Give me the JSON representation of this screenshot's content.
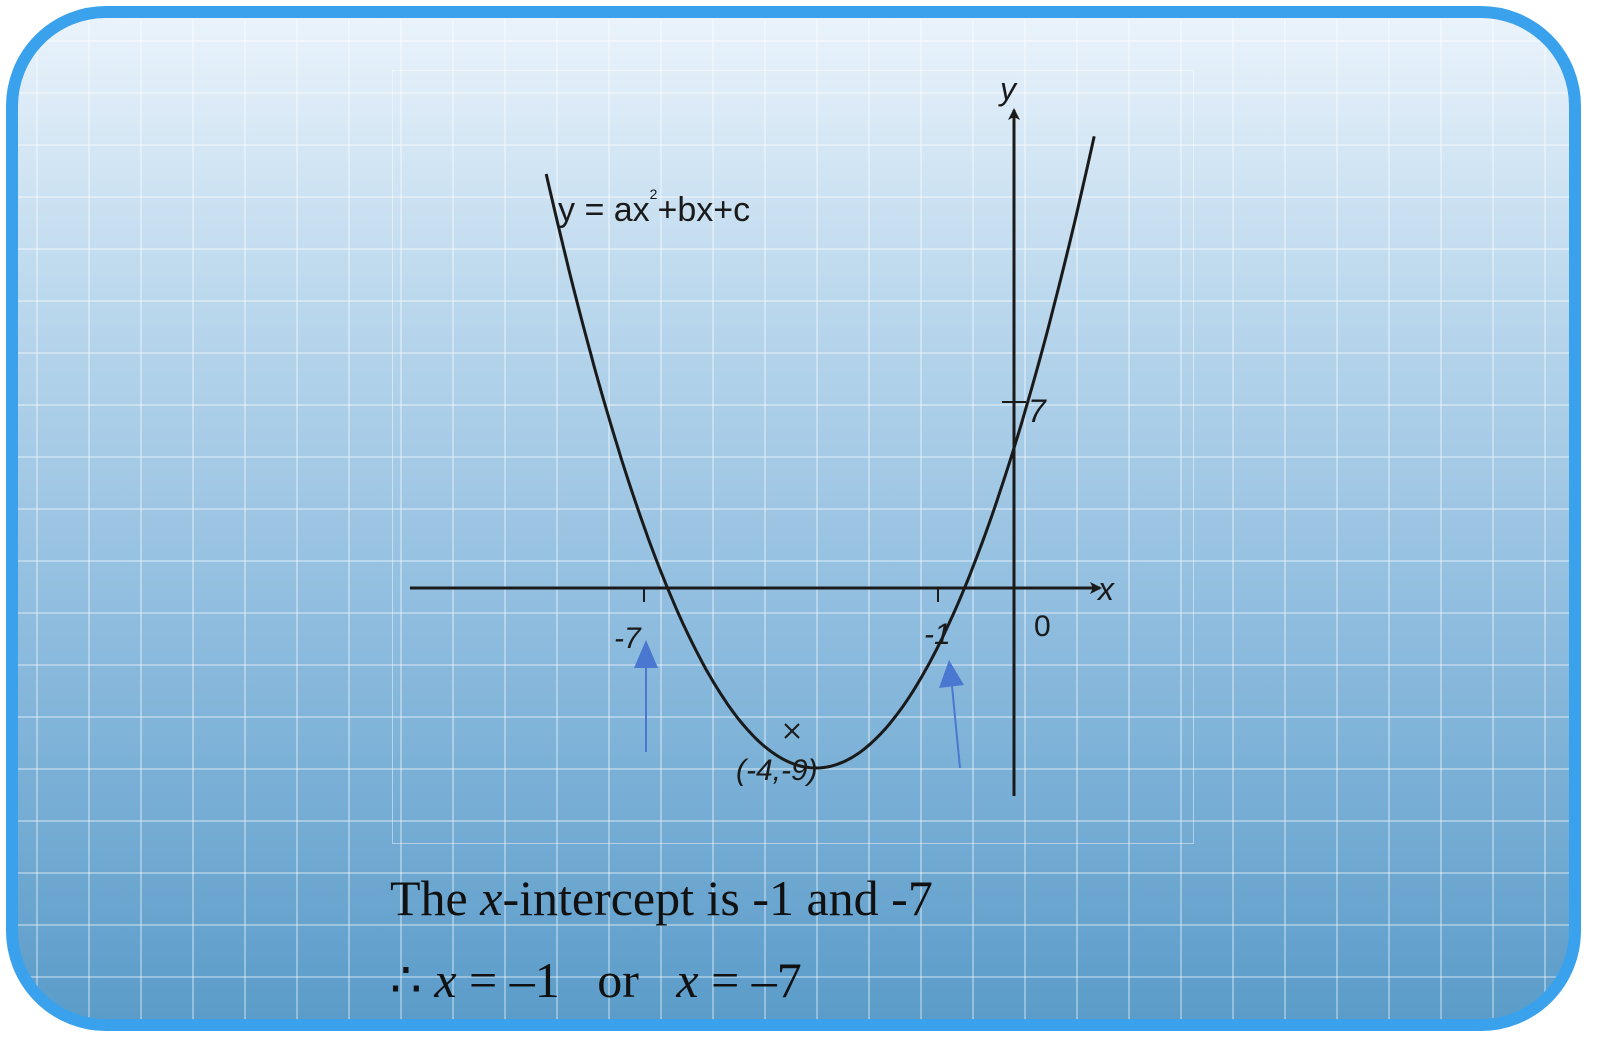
{
  "equation": {
    "prefix": "y = ax",
    "exponent": "2",
    "suffix": "+bx+c"
  },
  "axes": {
    "x_label": "x",
    "y_label": "y",
    "origin_label": "0"
  },
  "labels": {
    "y_intercept": "7",
    "root_left": "-7",
    "root_right": "-1",
    "vertex": "(-4,-9)"
  },
  "chart_data": {
    "type": "line",
    "vertex": [
      -4,
      -9
    ],
    "roots": [
      -7,
      -1
    ],
    "y_intercept": 7,
    "marked_points": [
      {
        "x": -7,
        "y": 0
      },
      {
        "x": -1,
        "y": 0
      },
      {
        "x": 0,
        "y": 7
      },
      {
        "x": -4,
        "y": -9
      }
    ],
    "grid": false
  },
  "caption": {
    "line1_before": "The ",
    "line1_var": "x",
    "line1_after": "-intercept is -1 and -7",
    "line2_therefore": "∴ ",
    "line2_var1": "x",
    "line2_eq1": " = –1   or   ",
    "line2_var2": "x",
    "line2_eq2": " = –7"
  },
  "colors": {
    "frame": "#3aa2ec",
    "curve": "#1a1a1a",
    "arrow": "#4a78d0"
  }
}
